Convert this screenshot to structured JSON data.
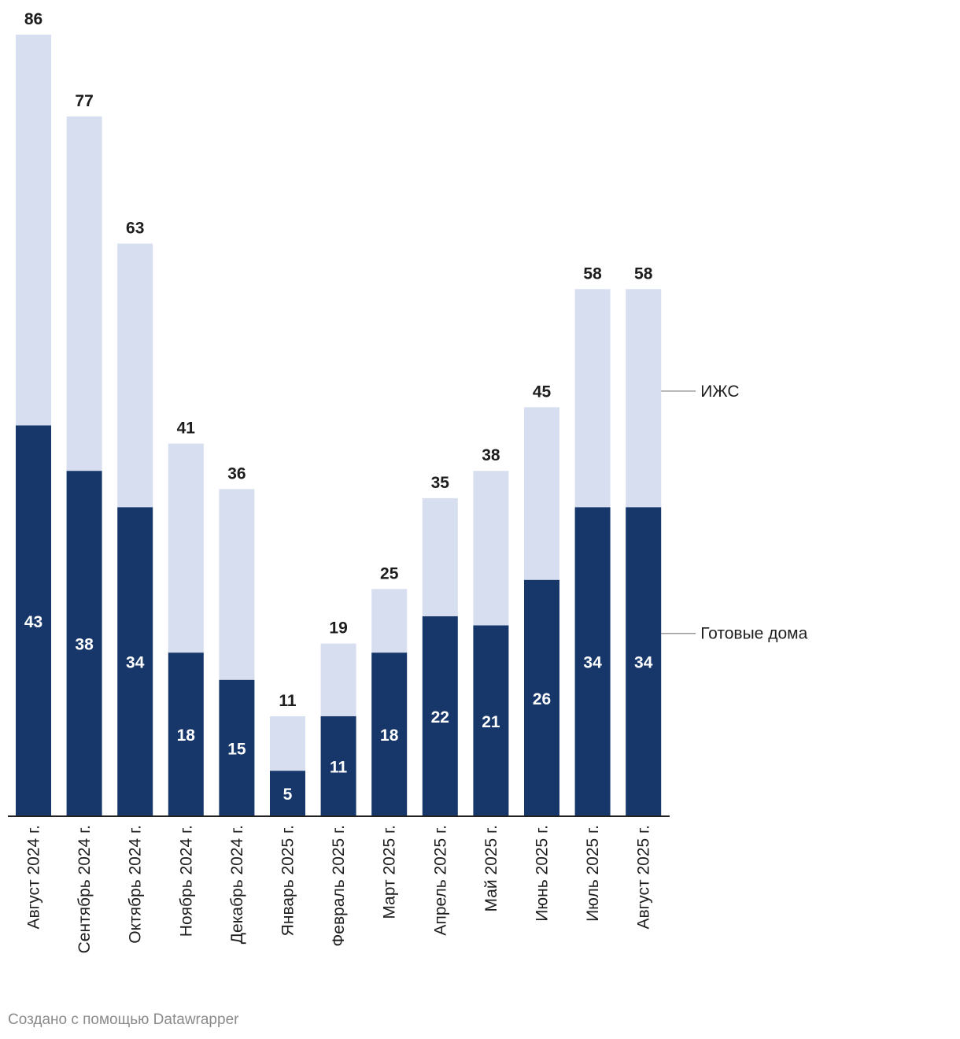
{
  "chart_data": {
    "type": "bar",
    "stacked": true,
    "categories": [
      "Август 2024 г.",
      "Сентябрь 2024 г.",
      "Октябрь 2024 г.",
      "Ноябрь 2024 г.",
      "Декабрь 2024 г.",
      "Январь 2025 г.",
      "Февраль 2025 г.",
      "Март 2025 г.",
      "Апрель 2025 г.",
      "Май 2025 г.",
      "Июнь 2025 г.",
      "Июль 2025 г.",
      "Август 2025 г."
    ],
    "series": [
      {
        "name": "Готовые дома",
        "color": "#17376a",
        "values": [
          43,
          38,
          34,
          18,
          15,
          5,
          11,
          18,
          22,
          21,
          26,
          34,
          34
        ]
      },
      {
        "name": "ИЖС",
        "color": "#d6deef",
        "values": [
          43,
          39,
          29,
          23,
          21,
          6,
          8,
          7,
          13,
          17,
          19,
          24,
          24
        ]
      }
    ],
    "totals": [
      86,
      77,
      63,
      41,
      36,
      11,
      19,
      25,
      35,
      38,
      45,
      58,
      58
    ],
    "ylim": [
      0,
      86
    ],
    "grid": false,
    "legend": "right (inline labels)"
  },
  "footer": {
    "credit": "Создано с помощью Datawrapper"
  }
}
